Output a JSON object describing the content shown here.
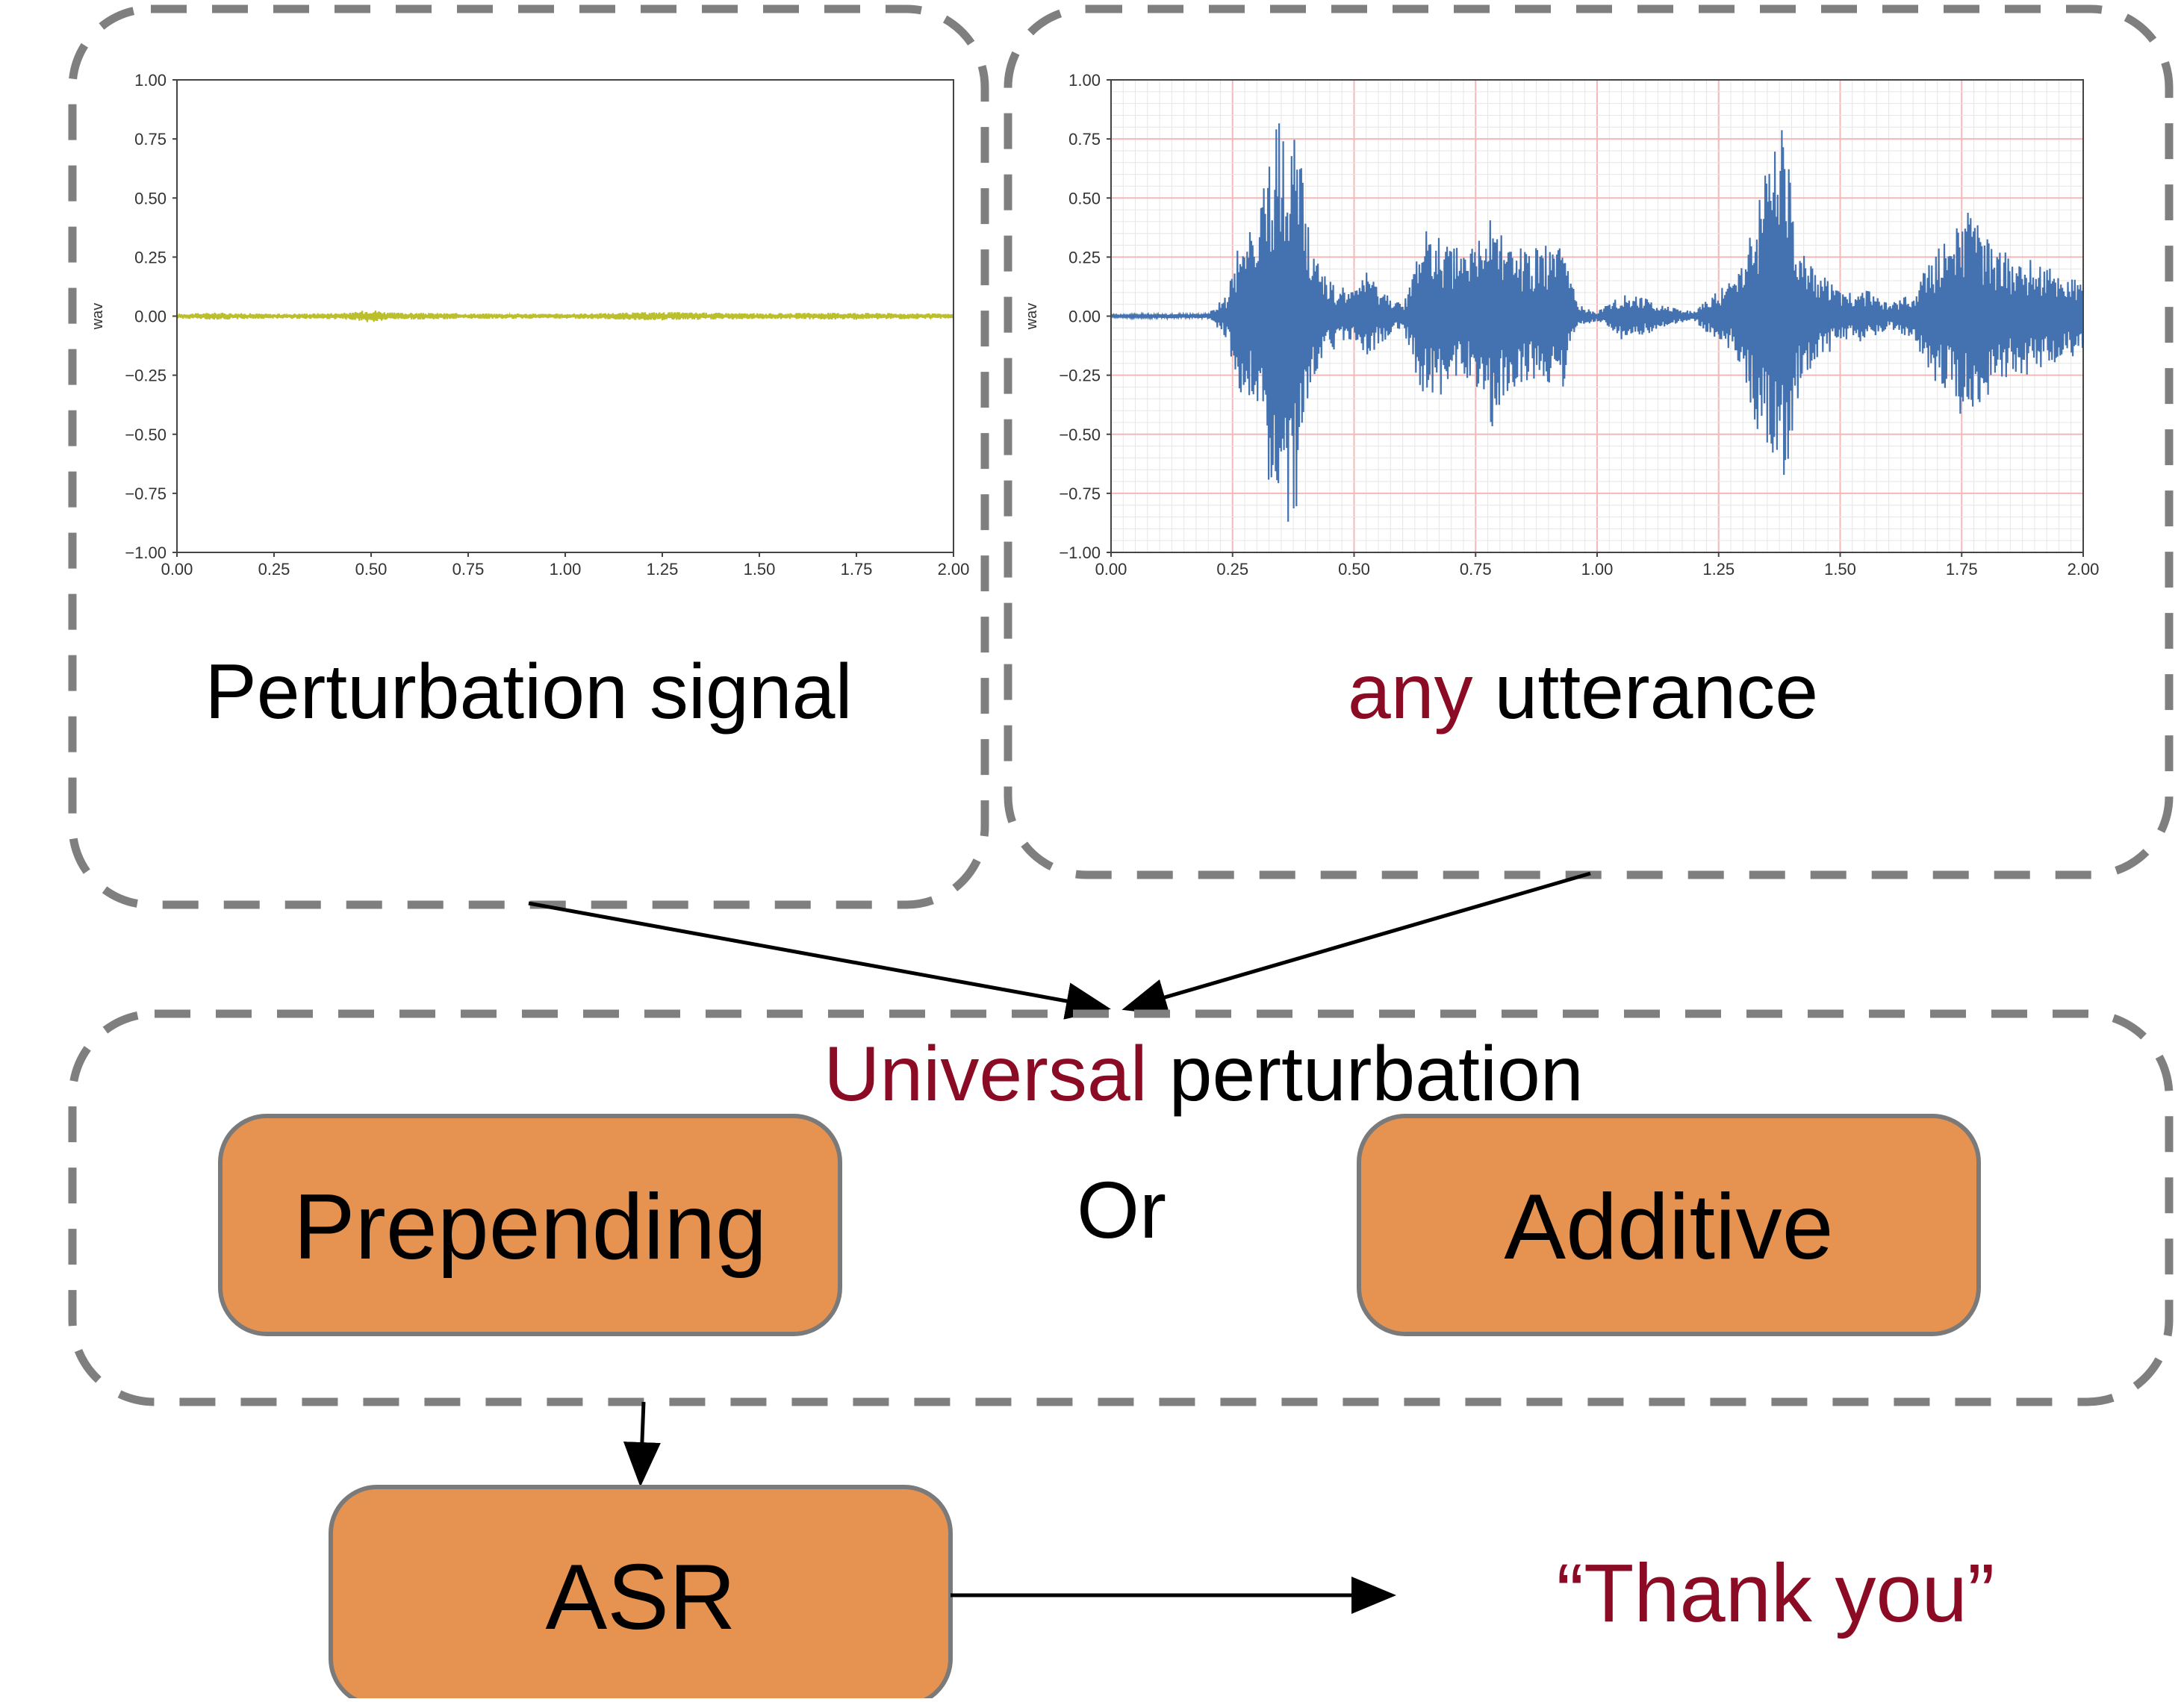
{
  "colors": {
    "dash": "#7f7f7f",
    "box_fill": "#e69352",
    "box_stroke": "#7a7a7a",
    "accent": "#8b0a24",
    "text": "#000000",
    "perturbation_wave": "#bcbf2c",
    "utterance_wave": "#4472b0",
    "grid_major": "#f3b8b8",
    "grid_minor": "#e6e6e6"
  },
  "left_panel": {
    "caption": "Perturbation signal",
    "icon": "perturbation-waveform"
  },
  "right_panel": {
    "caption_accent": "any",
    "caption_rest": " utterance",
    "icon": "utterance-waveform"
  },
  "middle": {
    "title_accent": "Universal",
    "title_rest": " perturbation",
    "option_a": "Prepending",
    "separator": "Or",
    "option_b": "Additive"
  },
  "asr": {
    "label": "ASR"
  },
  "output": {
    "text": "“Thank you”"
  },
  "chart_data": [
    {
      "type": "line",
      "title": "",
      "xlabel": "",
      "ylabel": "wav",
      "xlim": [
        0,
        2
      ],
      "ylim": [
        -1,
        1
      ],
      "xticks": [
        "0.00",
        "0.25",
        "0.50",
        "0.75",
        "1.00",
        "1.25",
        "1.50",
        "1.75",
        "2.00"
      ],
      "yticks": [
        "1.00",
        "0.75",
        "0.50",
        "0.25",
        "0.00",
        "−0.25",
        "−0.50",
        "−0.75",
        "−1.00"
      ],
      "grid": false,
      "series": [
        {
          "envelope": {
            "x": [
              0,
              0.1,
              0.25,
              0.35,
              0.45,
              0.5,
              0.55,
              0.75,
              1.0,
              1.25,
              1.5,
              1.75,
              2.0
            ],
            "amp": [
              0.01,
              0.015,
              0.01,
              0.012,
              0.015,
              0.03,
              0.015,
              0.012,
              0.01,
              0.018,
              0.012,
              0.015,
              0.01
            ]
          }
        }
      ]
    },
    {
      "type": "line",
      "title": "",
      "xlabel": "",
      "ylabel": "wav",
      "xlim": [
        0,
        2
      ],
      "ylim": [
        -1,
        1
      ],
      "xticks": [
        "0.00",
        "0.25",
        "0.50",
        "0.75",
        "1.00",
        "1.25",
        "1.50",
        "1.75",
        "2.00"
      ],
      "yticks": [
        "1.00",
        "0.75",
        "0.50",
        "0.25",
        "0.00",
        "−0.25",
        "−0.50",
        "−0.75",
        "−1.00"
      ],
      "grid": true,
      "series": [
        {
          "envelope": {
            "x": [
              0,
              0.2,
              0.24,
              0.26,
              0.3,
              0.33,
              0.36,
              0.38,
              0.41,
              0.45,
              0.5,
              0.52,
              0.55,
              0.6,
              0.65,
              0.7,
              0.75,
              0.78,
              0.82,
              0.86,
              0.9,
              0.93,
              0.96,
              1.0,
              1.05,
              1.1,
              1.15,
              1.2,
              1.24,
              1.28,
              1.32,
              1.36,
              1.38,
              1.42,
              1.46,
              1.5,
              1.55,
              1.6,
              1.65,
              1.7,
              1.76,
              1.8,
              1.85,
              1.9,
              1.95,
              2.0
            ],
            "amp": [
              0.005,
              0.01,
              0.1,
              0.3,
              0.45,
              0.75,
              0.9,
              0.85,
              0.3,
              0.15,
              0.1,
              0.2,
              0.12,
              0.05,
              0.4,
              0.3,
              0.3,
              0.5,
              0.3,
              0.3,
              0.3,
              0.3,
              0.05,
              0.02,
              0.1,
              0.08,
              0.04,
              0.02,
              0.1,
              0.15,
              0.4,
              0.75,
              0.8,
              0.3,
              0.2,
              0.1,
              0.12,
              0.05,
              0.1,
              0.3,
              0.45,
              0.35,
              0.25,
              0.25,
              0.2,
              0.15
            ]
          }
        }
      ]
    }
  ]
}
